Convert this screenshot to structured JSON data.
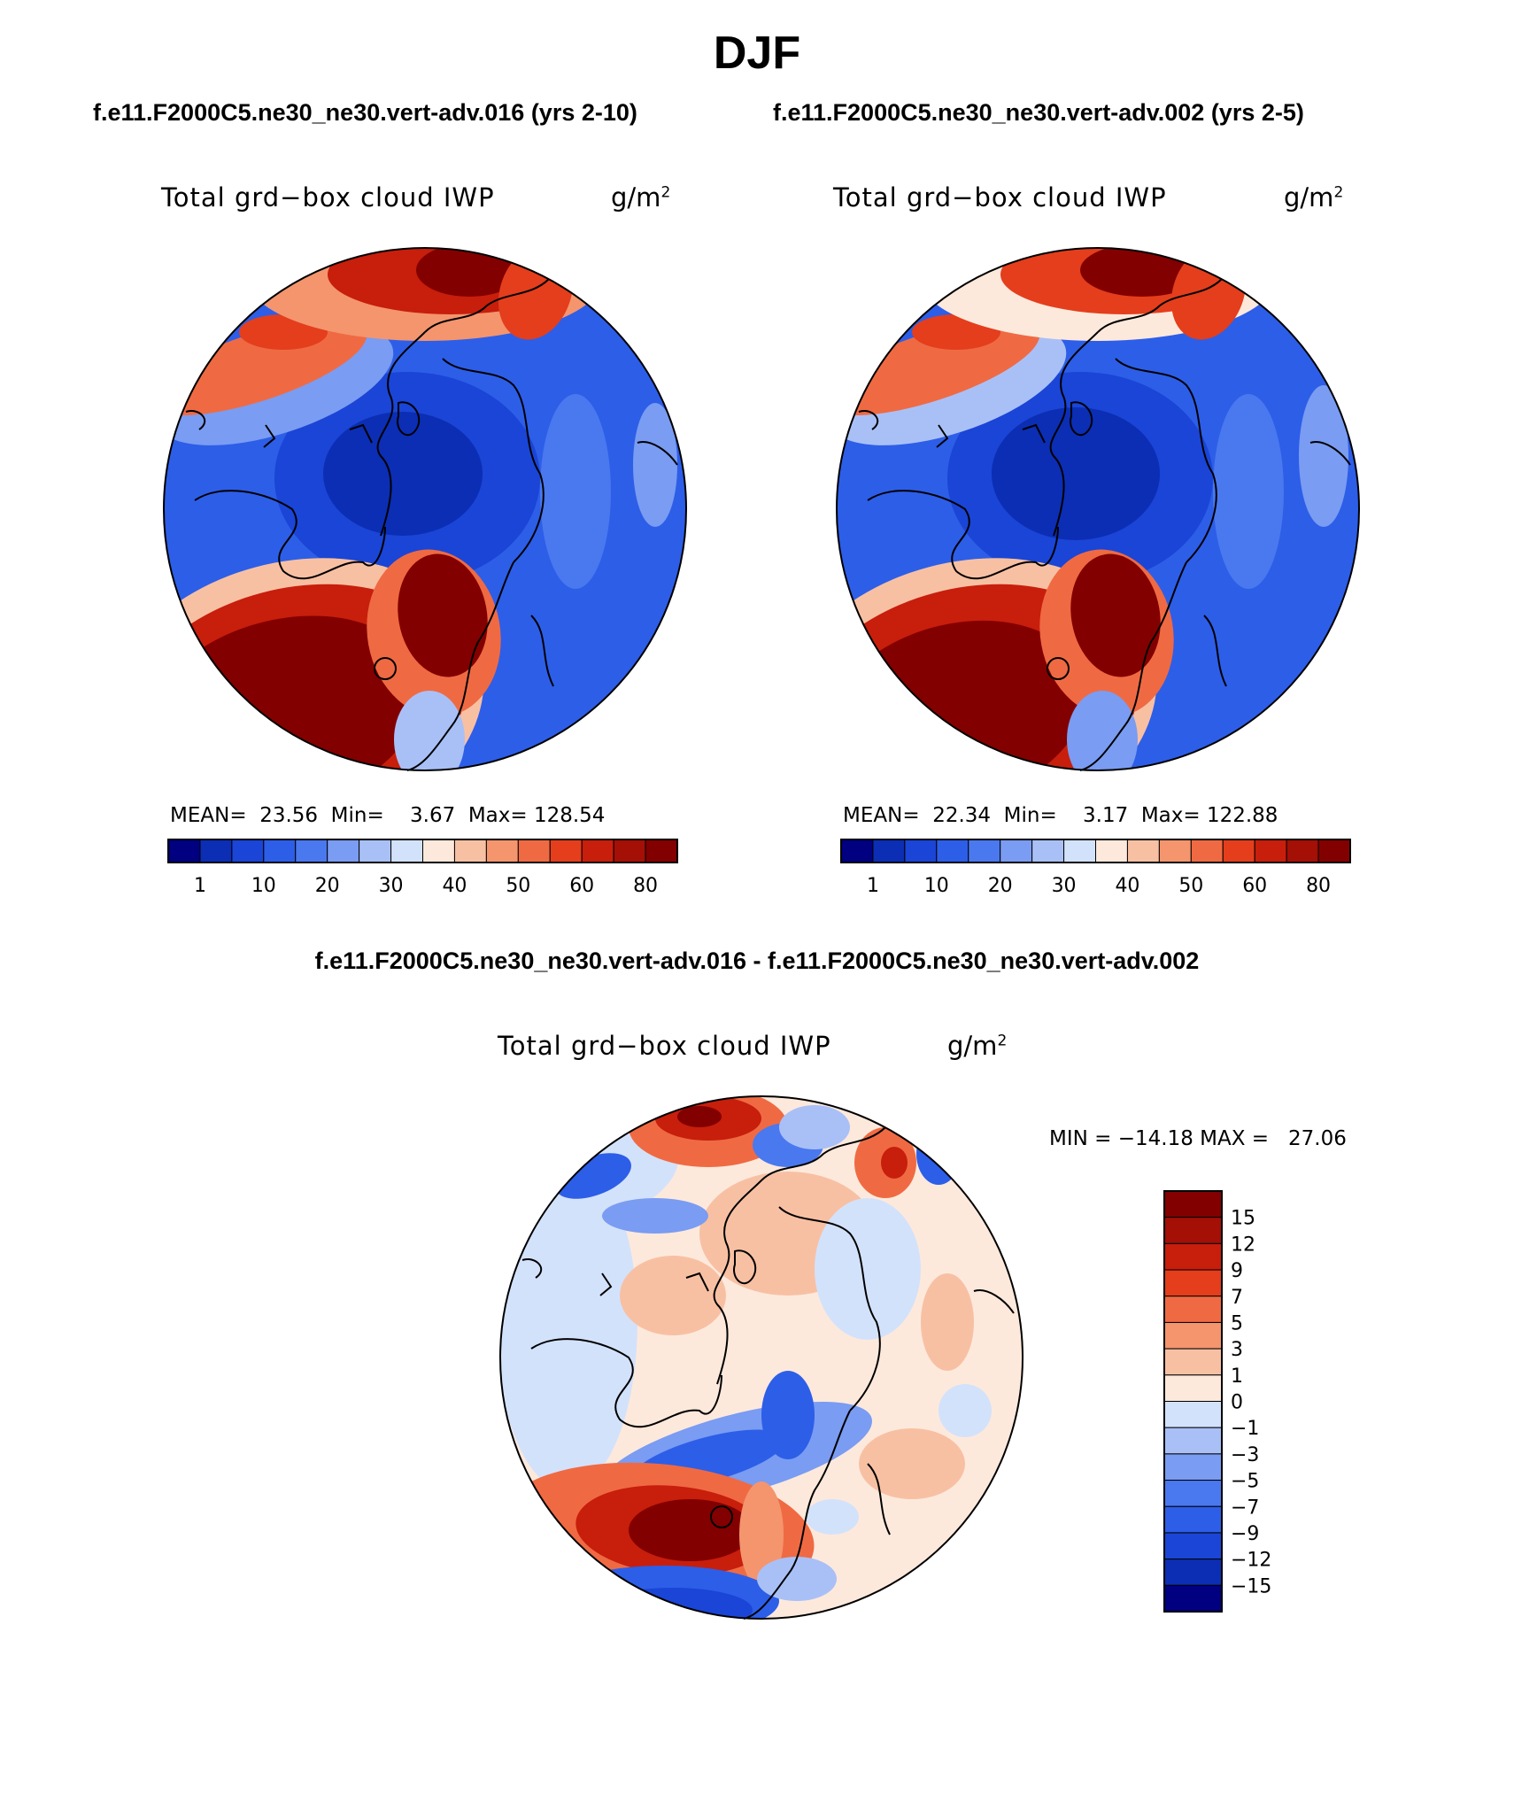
{
  "season": "DJF",
  "panels": [
    {
      "case": "f.e11.F2000C5.ne30_ne30.vert-adv.016 (yrs 2-10)",
      "variable": "Total grd−box cloud IWP",
      "units": "g/m",
      "units_exp": "2",
      "stats_text": "MEAN=  23.56  Min=    3.67  Max= 128.54"
    },
    {
      "case": "f.e11.F2000C5.ne30_ne30.vert-adv.002 (yrs 2-5)",
      "variable": "Total grd−box cloud IWP",
      "units": "g/m",
      "units_exp": "2",
      "stats_text": "MEAN=  22.34  Min=    3.17  Max= 122.88"
    }
  ],
  "difference": {
    "title": "f.e11.F2000C5.ne30_ne30.vert-adv.016 - f.e11.F2000C5.ne30_ne30.vert-adv.002",
    "variable": "Total grd−box cloud IWP",
    "units": "g/m",
    "units_exp": "2",
    "minmax_text": "MIN = −14.18 MAX =   27.06"
  },
  "colorbar_abs": {
    "colors": [
      "#000080",
      "#0b2eb4",
      "#1a45d6",
      "#2d5ee8",
      "#4a78ef",
      "#7a9cf2",
      "#a9c0f7",
      "#d3e2fb",
      "#fde9dc",
      "#f8c0a3",
      "#f4956e",
      "#ef6a43",
      "#e43e1c",
      "#c81e0c",
      "#a40f06",
      "#830000"
    ],
    "labels": [
      "1",
      "10",
      "20",
      "30",
      "40",
      "50",
      "60",
      "80"
    ]
  },
  "colorbar_diff": {
    "colors": [
      "#830000",
      "#a40f06",
      "#c81e0c",
      "#e43e1c",
      "#ef6a43",
      "#f4956e",
      "#f8c0a3",
      "#fde9dc",
      "#d3e2fb",
      "#a9c0f7",
      "#7a9cf2",
      "#4a78ef",
      "#2d5ee8",
      "#1a45d6",
      "#0b2eb4",
      "#000080"
    ],
    "labels": [
      "15",
      "12",
      "9",
      "7",
      "5",
      "3",
      "1",
      "0",
      "−1",
      "−3",
      "−5",
      "−7",
      "−9",
      "−12",
      "−15"
    ]
  }
}
